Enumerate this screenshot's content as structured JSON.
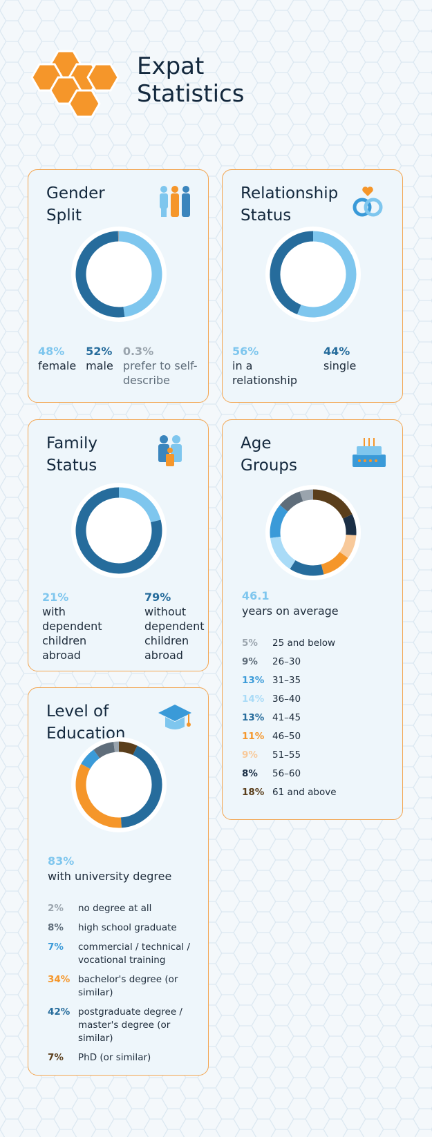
{
  "title": "Expat Statistics",
  "chart_data": [
    {
      "type": "donut",
      "title": "Gender Split",
      "direction": "clockwise",
      "categories": [
        "female",
        "male",
        "prefer to self-describe"
      ],
      "values": [
        48,
        52,
        0.3
      ],
      "value_labels": [
        "48%",
        "52%",
        "0.3%"
      ],
      "colors": [
        "#7ec6ee",
        "#266c9c",
        "#9aa4ad"
      ]
    },
    {
      "type": "donut",
      "title": "Relationship Status",
      "direction": "clockwise",
      "categories": [
        "in a relationship",
        "single"
      ],
      "values": [
        56,
        44
      ],
      "value_labels": [
        "56%",
        "44%"
      ],
      "colors": [
        "#7ec6ee",
        "#266c9c"
      ]
    },
    {
      "type": "donut",
      "title": "Family Status",
      "direction": "clockwise",
      "categories": [
        "with dependent children abroad",
        "without dependent children abroad"
      ],
      "values": [
        21,
        79
      ],
      "value_labels": [
        "21%",
        "79%"
      ],
      "colors": [
        "#7ec6ee",
        "#266c9c"
      ]
    },
    {
      "type": "donut",
      "title": "Age Groups",
      "direction": "counterclockwise",
      "summary": {
        "value": 46.1,
        "text": "years on average"
      },
      "categories": [
        "25 and below",
        "26–30",
        "31–35",
        "36–40",
        "41–45",
        "46–50",
        "51–55",
        "56–60",
        "61 and above"
      ],
      "values": [
        5,
        9,
        13,
        14,
        13,
        11,
        9,
        8,
        18
      ],
      "value_labels": [
        "5%",
        "9%",
        "13%",
        "14%",
        "13%",
        "11%",
        "9%",
        "8%",
        "18%"
      ],
      "colors": [
        "#9aa4ad",
        "#5f6d7a",
        "#3a9ad8",
        "#a9dbf7",
        "#266c9c",
        "#f5962a",
        "#f8c99a",
        "#1b2f45",
        "#5a3e1b"
      ]
    },
    {
      "type": "donut",
      "title": "Level of Education",
      "direction": "counterclockwise",
      "summary": {
        "value": 83,
        "value_label": "83%",
        "text": "with university degree"
      },
      "categories": [
        "no degree at all",
        "high school graduate",
        "commercial / technical / vocational training",
        "bachelor's degree (or similar)",
        "postgraduate degree / master's degree (or similar)",
        "PhD (or similar)"
      ],
      "values": [
        2,
        8,
        7,
        34,
        42,
        7
      ],
      "value_labels": [
        "2%",
        "8%",
        "7%",
        "34%",
        "42%",
        "7%"
      ],
      "colors": [
        "#9aa4ad",
        "#5f6d7a",
        "#3a9ad8",
        "#f5962a",
        "#266c9c",
        "#5a3e1b"
      ]
    }
  ]
}
